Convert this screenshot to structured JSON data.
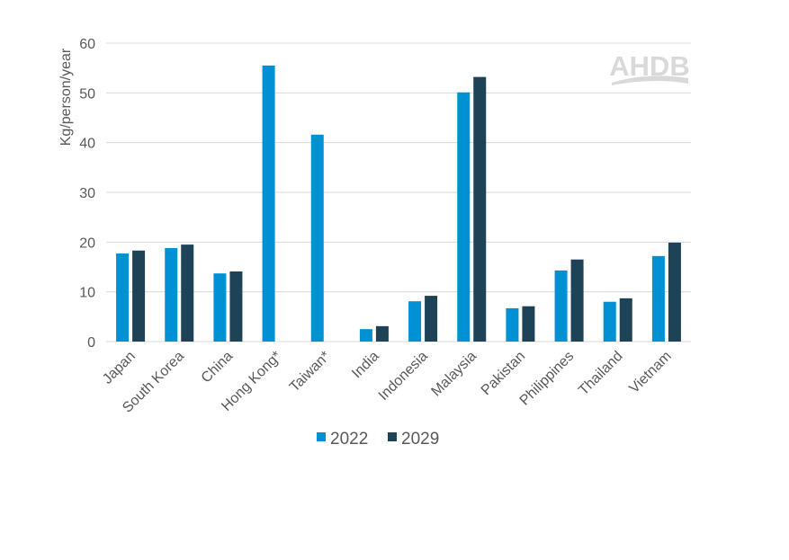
{
  "chart_data": {
    "type": "bar",
    "title": "",
    "xlabel": "",
    "ylabel": "Kg/person/year",
    "ylim": [
      0,
      60
    ],
    "yticks": [
      0,
      10,
      20,
      30,
      40,
      50,
      60
    ],
    "grid": true,
    "legend": "bottom",
    "categories": [
      "Japan",
      "South Korea",
      "China",
      "Hong Kong*",
      "Taiwan*",
      "India",
      "Indonesia",
      "Malaysia",
      "Pakistan",
      "Philippines",
      "Thailand",
      "Vietnam"
    ],
    "series": [
      {
        "name": "2022",
        "color": "#0090D4",
        "values": [
          17.7,
          18.8,
          13.7,
          55.5,
          41.6,
          2.5,
          8.1,
          50.1,
          6.7,
          14.3,
          8.0,
          17.2
        ]
      },
      {
        "name": "2029",
        "color": "#1F4356",
        "values": [
          18.3,
          19.5,
          14.1,
          null,
          null,
          3.1,
          9.2,
          53.2,
          7.1,
          16.5,
          8.7,
          19.9
        ]
      }
    ]
  },
  "logo": {
    "text": "AHDB",
    "color": "#D9D9D9"
  }
}
